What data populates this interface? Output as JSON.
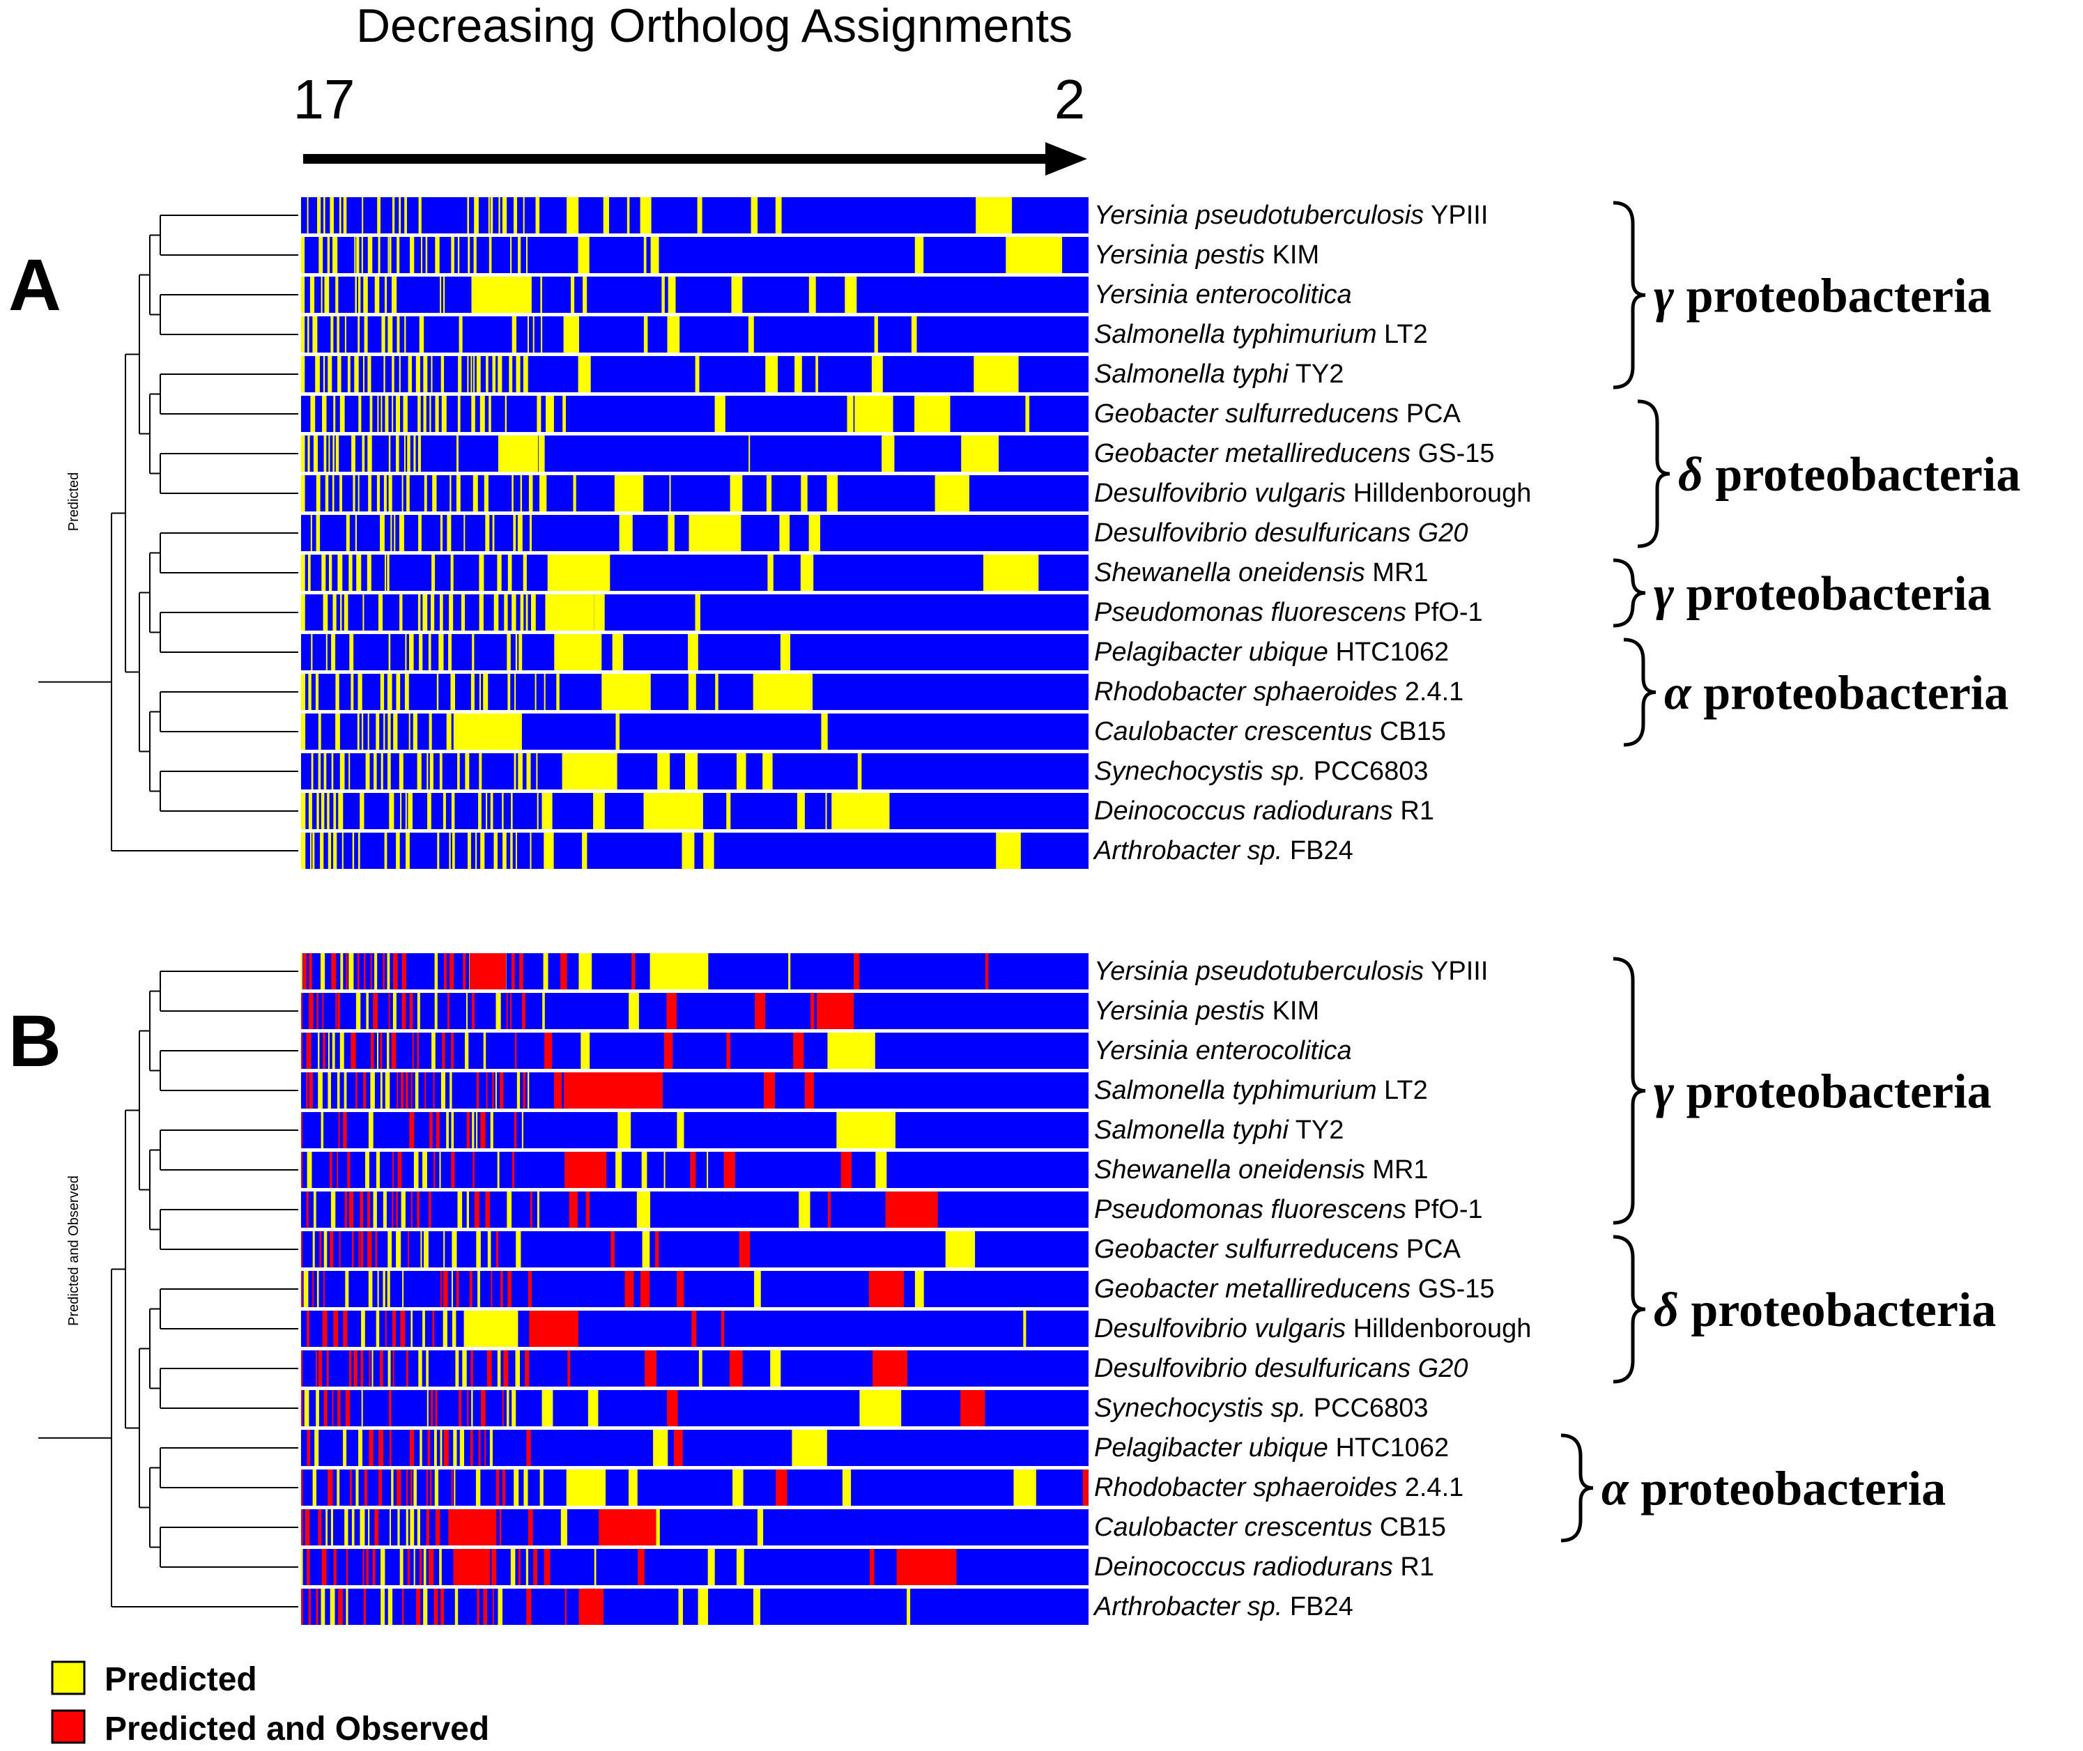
{
  "chart_data": {
    "type": "heatmap",
    "title": "Decreasing Ortholog Assignments",
    "axis": {
      "start_label": "17",
      "end_label": "2"
    },
    "colors": {
      "background": "#0000FF",
      "predicted": "#FFFF00",
      "predicted_and_observed": "#FF0000",
      "row_separator": "#FFFFFF"
    },
    "legend": {
      "position": "bottom-left",
      "items": [
        {
          "label": "Predicted",
          "color": "#FFFF00"
        },
        {
          "label": "Predicted and Observed",
          "color": "#FF0000"
        }
      ]
    },
    "panels": [
      {
        "letter": "A",
        "tree_label": "Predicted",
        "rows": [
          {
            "genus_species": "Yersinia pseudotuberculosis",
            "strain": "YPIII",
            "strain_italic": false
          },
          {
            "genus_species": "Yersinia pestis",
            "strain": "KIM",
            "strain_italic": false
          },
          {
            "genus_species": "Yersinia enterocolitica",
            "strain": "",
            "strain_italic": false
          },
          {
            "genus_species": "Salmonella typhimurium",
            "strain": "LT2",
            "strain_italic": false
          },
          {
            "genus_species": "Salmonella typhi",
            "strain": "TY2",
            "strain_italic": false
          },
          {
            "genus_species": "Geobacter sulfurreducens",
            "strain": "PCA",
            "strain_italic": false
          },
          {
            "genus_species": "Geobacter metallireducens",
            "strain": "GS-15",
            "strain_italic": false
          },
          {
            "genus_species": "Desulfovibrio vulgaris",
            "strain": "Hilldenborough",
            "strain_italic": false
          },
          {
            "genus_species": "Desulfovibrio desulfuricans",
            "strain": "G20",
            "strain_italic": true
          },
          {
            "genus_species": "Shewanella oneidensis",
            "strain": "MR1",
            "strain_italic": false
          },
          {
            "genus_species": "Pseudomonas fluorescens",
            "strain": "PfO-1",
            "strain_italic": false
          },
          {
            "genus_species": "Pelagibacter ubique",
            "strain": "HTC1062",
            "strain_italic": false
          },
          {
            "genus_species": "Rhodobacter sphaeroides",
            "strain": "2.4.1",
            "strain_italic": false
          },
          {
            "genus_species": "Caulobacter crescentus",
            "strain": "CB15",
            "strain_italic": false
          },
          {
            "genus_species": "Synechocystis sp.",
            "strain": "PCC6803",
            "strain_italic": false
          },
          {
            "genus_species": "Deinococcus radiodurans",
            "strain": "R1",
            "strain_italic": false
          },
          {
            "genus_species": "Arthrobacter sp.",
            "strain": "FB24",
            "strain_italic": false
          }
        ],
        "groups": [
          {
            "symbol": "γ",
            "label": "proteobacteria",
            "first_row": 0,
            "last_row": 4
          },
          {
            "symbol": "δ",
            "label": "proteobacteria",
            "first_row": 5,
            "last_row": 8
          },
          {
            "symbol": "γ",
            "label": "proteobacteria",
            "first_row": 9,
            "last_row": 10
          },
          {
            "symbol": "α",
            "label": "proteobacteria",
            "first_row": 11,
            "last_row": 13
          }
        ]
      },
      {
        "letter": "B",
        "tree_label": "Predicted and Observed",
        "rows": [
          {
            "genus_species": "Yersinia pseudotuberculosis",
            "strain": "YPIII",
            "strain_italic": false
          },
          {
            "genus_species": "Yersinia pestis",
            "strain": "KIM",
            "strain_italic": false
          },
          {
            "genus_species": "Yersinia enterocolitica",
            "strain": "",
            "strain_italic": false
          },
          {
            "genus_species": "Salmonella typhimurium",
            "strain": "LT2",
            "strain_italic": false
          },
          {
            "genus_species": "Salmonella typhi",
            "strain": "TY2",
            "strain_italic": false
          },
          {
            "genus_species": "Shewanella oneidensis",
            "strain": "MR1",
            "strain_italic": false
          },
          {
            "genus_species": "Pseudomonas fluorescens",
            "strain": "PfO-1",
            "strain_italic": false
          },
          {
            "genus_species": "Geobacter sulfurreducens",
            "strain": "PCA",
            "strain_italic": false
          },
          {
            "genus_species": "Geobacter metallireducens",
            "strain": "GS-15",
            "strain_italic": false
          },
          {
            "genus_species": "Desulfovibrio vulgaris",
            "strain": "Hilldenborough",
            "strain_italic": false
          },
          {
            "genus_species": "Desulfovibrio desulfuricans",
            "strain": "G20",
            "strain_italic": true
          },
          {
            "genus_species": "Synechocystis sp.",
            "strain": "PCC6803",
            "strain_italic": false
          },
          {
            "genus_species": "Pelagibacter ubique",
            "strain": "HTC1062",
            "strain_italic": false
          },
          {
            "genus_species": "Rhodobacter sphaeroides",
            "strain": "2.4.1",
            "strain_italic": false
          },
          {
            "genus_species": "Caulobacter crescentus",
            "strain": "CB15",
            "strain_italic": false
          },
          {
            "genus_species": "Deinococcus radiodurans",
            "strain": "R1",
            "strain_italic": false
          },
          {
            "genus_species": "Arthrobacter sp.",
            "strain": "FB24",
            "strain_italic": false
          }
        ],
        "groups": [
          {
            "symbol": "γ",
            "label": "proteobacteria",
            "first_row": 0,
            "last_row": 6
          },
          {
            "symbol": "δ",
            "label": "proteobacteria",
            "first_row": 7,
            "last_row": 10
          },
          {
            "symbol": "α",
            "label": "proteobacteria",
            "first_row": 12,
            "last_row": 14
          }
        ]
      }
    ]
  }
}
